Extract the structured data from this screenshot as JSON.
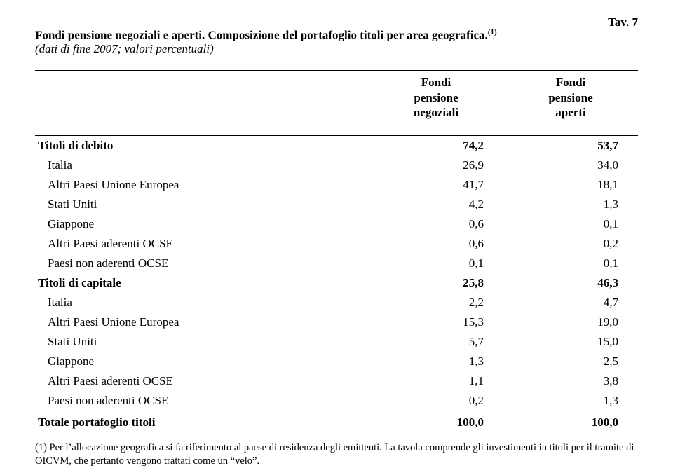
{
  "header": {
    "tav_label": "Tav. 7",
    "title_prefix": "Fondi pensione negoziali e aperti. Composizione del portafoglio titoli per area geografica.",
    "title_sup": "(1)",
    "subtitle": "(dati di fine 2007; valori percentuali)"
  },
  "columns": {
    "blank": "",
    "col1_line1": "Fondi",
    "col1_line2": "pensione",
    "col1_line3": "negoziali",
    "col2_line1": "Fondi",
    "col2_line2": "pensione",
    "col2_line3": "aperti"
  },
  "rows": [
    {
      "label": "Titoli di debito",
      "v1": "74,2",
      "v2": "53,7",
      "bold": true,
      "indent": false
    },
    {
      "label": "Italia",
      "v1": "26,9",
      "v2": "34,0",
      "bold": false,
      "indent": true
    },
    {
      "label": "Altri Paesi Unione Europea",
      "v1": "41,7",
      "v2": "18,1",
      "bold": false,
      "indent": true
    },
    {
      "label": "Stati Uniti",
      "v1": "4,2",
      "v2": "1,3",
      "bold": false,
      "indent": true
    },
    {
      "label": "Giappone",
      "v1": "0,6",
      "v2": "0,1",
      "bold": false,
      "indent": true
    },
    {
      "label": "Altri Paesi aderenti OCSE",
      "v1": "0,6",
      "v2": "0,2",
      "bold": false,
      "indent": true
    },
    {
      "label": "Paesi non aderenti OCSE",
      "v1": "0,1",
      "v2": "0,1",
      "bold": false,
      "indent": true
    },
    {
      "label": "Titoli di capitale",
      "v1": "25,8",
      "v2": "46,3",
      "bold": true,
      "indent": false
    },
    {
      "label": "Italia",
      "v1": "2,2",
      "v2": "4,7",
      "bold": false,
      "indent": true
    },
    {
      "label": "Altri Paesi Unione Europea",
      "v1": "15,3",
      "v2": "19,0",
      "bold": false,
      "indent": true
    },
    {
      "label": "Stati Uniti",
      "v1": "5,7",
      "v2": "15,0",
      "bold": false,
      "indent": true
    },
    {
      "label": "Giappone",
      "v1": "1,3",
      "v2": "2,5",
      "bold": false,
      "indent": true
    },
    {
      "label": "Altri Paesi aderenti OCSE",
      "v1": "1,1",
      "v2": "3,8",
      "bold": false,
      "indent": true
    },
    {
      "label": "Paesi non aderenti OCSE",
      "v1": "0,2",
      "v2": "1,3",
      "bold": false,
      "indent": true
    }
  ],
  "total": {
    "label": "Totale portafoglio titoli",
    "v1": "100,0",
    "v2": "100,0"
  },
  "footnote": "(1) Per l’allocazione geografica si fa riferimento al paese di residenza degli emittenti. La tavola comprende gli investimenti in titoli per il tramite di OICVM, che pertanto vengono trattati come un “velo”."
}
